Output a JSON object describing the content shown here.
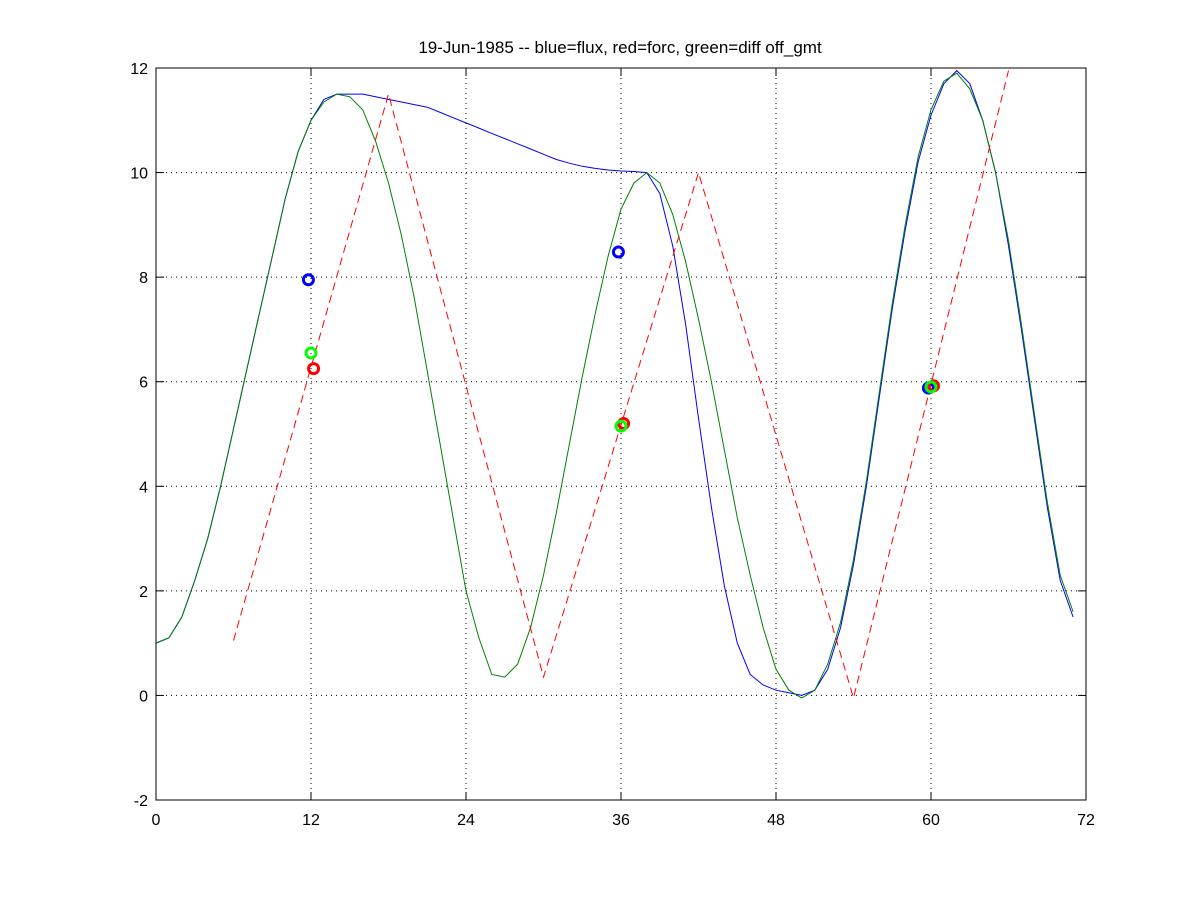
{
  "chart_data": {
    "type": "line",
    "title": "19-Jun-1985 -- blue=flux, red=forc, green=diff off_gmt",
    "xlabel": "",
    "ylabel": "",
    "xlim": [
      0,
      72
    ],
    "ylim": [
      -2,
      12
    ],
    "xticks": [
      0,
      12,
      24,
      36,
      48,
      60,
      72
    ],
    "yticks": [
      -2,
      0,
      2,
      4,
      6,
      8,
      10,
      12
    ],
    "grid": true,
    "series": [
      {
        "color": "#0000ff",
        "style": "solid",
        "x": [
          0,
          1,
          2,
          3,
          4,
          5,
          6,
          7,
          8,
          9,
          10,
          11,
          12,
          13,
          14,
          15,
          16,
          17,
          18,
          19,
          20,
          21,
          22,
          23,
          24,
          25,
          26,
          27,
          28,
          29,
          30,
          31,
          32,
          33,
          34,
          35,
          36,
          37,
          38,
          39,
          40,
          41,
          42,
          43,
          44,
          45,
          46,
          47,
          48,
          49,
          50,
          51,
          52,
          53,
          54,
          55,
          56,
          57,
          58,
          59,
          60,
          61,
          62,
          63,
          64,
          65,
          66,
          67,
          68,
          69,
          70,
          71
        ],
        "y": [
          1.0,
          1.1,
          1.5,
          2.2,
          3.0,
          4.0,
          5.1,
          6.2,
          7.3,
          8.4,
          9.5,
          10.4,
          11.0,
          11.4,
          11.5,
          11.5,
          11.5,
          11.45,
          11.4,
          11.35,
          11.3,
          11.25,
          11.15,
          11.05,
          10.95,
          10.85,
          10.75,
          10.65,
          10.55,
          10.45,
          10.35,
          10.25,
          10.18,
          10.12,
          10.08,
          10.05,
          10.03,
          10.02,
          10.0,
          9.6,
          8.6,
          7.1,
          5.3,
          3.6,
          2.1,
          1.0,
          0.4,
          0.2,
          0.1,
          0.05,
          0.0,
          0.1,
          0.5,
          1.3,
          2.5,
          4.0,
          5.7,
          7.4,
          8.9,
          10.2,
          11.1,
          11.7,
          11.95,
          11.7,
          11.0,
          10.0,
          8.6,
          7.0,
          5.3,
          3.6,
          2.2,
          1.5
        ]
      },
      {
        "color": "#008000",
        "style": "solid",
        "x": [
          0,
          1,
          2,
          3,
          4,
          5,
          6,
          7,
          8,
          9,
          10,
          11,
          12,
          13,
          14,
          15,
          16,
          17,
          18,
          19,
          20,
          21,
          22,
          23,
          24,
          25,
          26,
          27,
          28,
          29,
          30,
          31,
          32,
          33,
          34,
          35,
          36,
          37,
          38,
          39,
          40,
          41,
          42,
          43,
          44,
          45,
          46,
          47,
          48,
          49,
          50,
          51,
          52,
          53,
          54,
          55,
          56,
          57,
          58,
          59,
          60,
          61,
          62,
          63,
          64,
          65,
          66,
          67,
          68,
          69,
          70,
          71
        ],
        "y": [
          1.0,
          1.1,
          1.5,
          2.2,
          3.0,
          4.0,
          5.1,
          6.2,
          7.3,
          8.4,
          9.5,
          10.4,
          11.0,
          11.35,
          11.5,
          11.45,
          11.2,
          10.6,
          9.8,
          8.8,
          7.6,
          6.2,
          4.8,
          3.4,
          2.0,
          1.1,
          0.4,
          0.35,
          0.6,
          1.3,
          2.3,
          3.5,
          4.8,
          6.1,
          7.3,
          8.4,
          9.3,
          9.8,
          10.0,
          9.8,
          9.2,
          8.3,
          7.2,
          6.0,
          4.7,
          3.4,
          2.3,
          1.3,
          0.5,
          0.1,
          -0.05,
          0.1,
          0.6,
          1.4,
          2.6,
          4.1,
          5.8,
          7.5,
          9.0,
          10.3,
          11.2,
          11.75,
          11.9,
          11.6,
          11.0,
          10.0,
          8.7,
          7.1,
          5.4,
          3.7,
          2.3,
          1.6
        ]
      },
      {
        "color": "#ff0000",
        "style": "dashed",
        "x": [
          6,
          18,
          30,
          42,
          54,
          66
        ],
        "y": [
          1.05,
          11.5,
          0.35,
          10.0,
          -0.05,
          11.95
        ]
      }
    ],
    "markers": [
      {
        "color": "#0000ff",
        "x": 11.8,
        "y": 7.95
      },
      {
        "color": "#00ff00",
        "x": 12.0,
        "y": 6.55
      },
      {
        "color": "#ff0000",
        "x": 12.2,
        "y": 6.25
      },
      {
        "color": "#0000ff",
        "x": 35.8,
        "y": 8.48
      },
      {
        "color": "#ff0000",
        "x": 36.2,
        "y": 5.2
      },
      {
        "color": "#00ff00",
        "x": 36.0,
        "y": 5.15
      },
      {
        "color": "#0000ff",
        "x": 59.8,
        "y": 5.88
      },
      {
        "color": "#ff0000",
        "x": 60.2,
        "y": 5.92
      },
      {
        "color": "#00ff00",
        "x": 60.0,
        "y": 5.9
      }
    ]
  }
}
